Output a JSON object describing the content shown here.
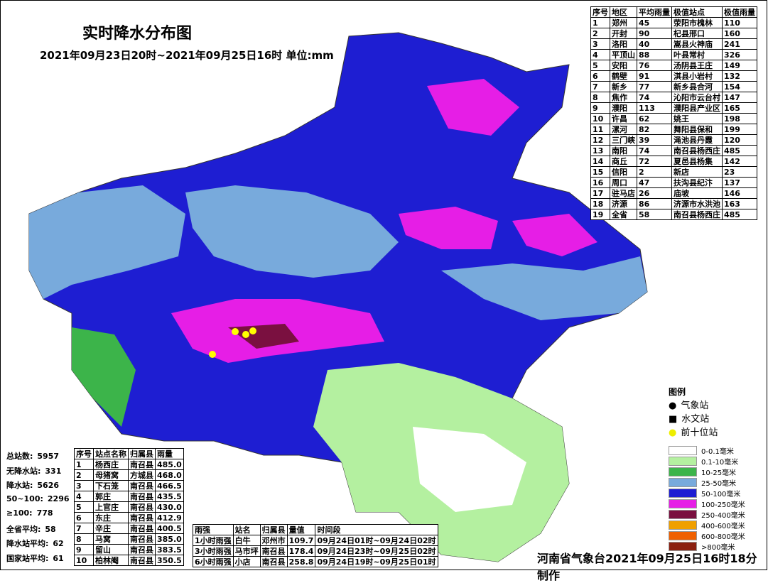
{
  "header": {
    "title": "实时降水分布图",
    "subtitle": "2021年09月23日20时~2021年09月25日16时 单位:mm"
  },
  "region_table": {
    "columns": [
      "序号",
      "地区",
      "平均雨量",
      "极值站点",
      "极值雨量"
    ],
    "rows": [
      [
        "1",
        "郑州",
        "45",
        "荥阳市槐林",
        "110"
      ],
      [
        "2",
        "开封",
        "90",
        "杞县邢口",
        "160"
      ],
      [
        "3",
        "洛阳",
        "40",
        "嵩县火神庙",
        "241"
      ],
      [
        "4",
        "平顶山",
        "88",
        "叶县常村",
        "326"
      ],
      [
        "5",
        "安阳",
        "76",
        "汤阴县王庄",
        "149"
      ],
      [
        "6",
        "鹤壁",
        "91",
        "淇县小岩村",
        "132"
      ],
      [
        "7",
        "新乡",
        "77",
        "新乡县合河",
        "154"
      ],
      [
        "8",
        "焦作",
        "74",
        "沁阳市云台村",
        "147"
      ],
      [
        "9",
        "濮阳",
        "113",
        "濮阳县产业区",
        "165"
      ],
      [
        "10",
        "许昌",
        "62",
        "姚王",
        "198"
      ],
      [
        "11",
        "漯河",
        "82",
        "舞阳县保和",
        "199"
      ],
      [
        "12",
        "三门峡",
        "39",
        "渑池县丹霞",
        "120"
      ],
      [
        "13",
        "南阳",
        "74",
        "南召县杨西庄",
        "485"
      ],
      [
        "14",
        "商丘",
        "72",
        "夏邑县杨集",
        "142"
      ],
      [
        "15",
        "信阳",
        "2",
        "新店",
        "23"
      ],
      [
        "16",
        "周口",
        "47",
        "扶沟县纪汴",
        "137"
      ],
      [
        "17",
        "驻马店",
        "26",
        "庙坡",
        "146"
      ],
      [
        "18",
        "济源",
        "86",
        "济源市水洪池",
        "163"
      ],
      [
        "19",
        "全省",
        "58",
        "南召县杨西庄",
        "485"
      ]
    ]
  },
  "stats": [
    [
      "总站数:",
      "5957"
    ],
    [
      "无降水站:",
      "331"
    ],
    [
      "降水站:",
      "5626"
    ],
    [
      "50~100:",
      "2296"
    ],
    [
      "≥100:",
      "778"
    ],
    [
      "全省平均:",
      "58"
    ],
    [
      "降水站平均:",
      "62"
    ],
    [
      "国家站平均:",
      "61"
    ]
  ],
  "top_table": {
    "columns": [
      "序号",
      "站点名称",
      "归属县",
      "雨量"
    ],
    "rows": [
      [
        "1",
        "杨西庄",
        "南召县",
        "485.0"
      ],
      [
        "2",
        "母猪窝",
        "方城县",
        "468.0"
      ],
      [
        "3",
        "下石笼",
        "南召县",
        "466.5"
      ],
      [
        "4",
        "郭庄",
        "南召县",
        "435.5"
      ],
      [
        "5",
        "上官庄",
        "南召县",
        "430.0"
      ],
      [
        "6",
        "东庄",
        "南召县",
        "412.9"
      ],
      [
        "7",
        "辛庄",
        "南召县",
        "400.5"
      ],
      [
        "8",
        "马窝",
        "南召县",
        "385.0"
      ],
      [
        "9",
        "留山",
        "南召县",
        "383.5"
      ],
      [
        "10",
        "柏林阉",
        "南召县",
        "350.5"
      ]
    ]
  },
  "intensity_table": {
    "columns": [
      "雨强",
      "站名",
      "归属县",
      "量值",
      "时间段"
    ],
    "rows": [
      [
        "1小时雨强",
        "白牛",
        "邓州市",
        "109.7",
        "09月24日01时~09月24日02时"
      ],
      [
        "3小时雨强",
        "马市坪",
        "南召县",
        "178.4",
        "09月24日23时~09月25日02时"
      ],
      [
        "6小时雨强",
        "小店",
        "南召县",
        "258.8",
        "09月24日19时~09月25日01时"
      ]
    ]
  },
  "legend": {
    "title": "图例",
    "symbols": [
      "气象站",
      "水文站",
      "前十位站"
    ],
    "levels": [
      {
        "label": "0-0.1毫米",
        "color": "#ffffff"
      },
      {
        "label": "0.1-10毫米",
        "color": "#b4f0a0"
      },
      {
        "label": "10-25毫米",
        "color": "#3cb44a"
      },
      {
        "label": "25-50毫米",
        "color": "#78aadc"
      },
      {
        "label": "50-100毫米",
        "color": "#1e1ed2"
      },
      {
        "label": "100-250毫米",
        "color": "#e61ee6"
      },
      {
        "label": "250-400毫米",
        "color": "#7a1040"
      },
      {
        "label": "400-600毫米",
        "color": "#f0a000"
      },
      {
        "label": "600-800毫米",
        "color": "#f06000"
      },
      {
        "label": ">800毫米",
        "color": "#8b2010"
      }
    ]
  },
  "footer": "河南省气象台2021年09月25日16时18分制作"
}
